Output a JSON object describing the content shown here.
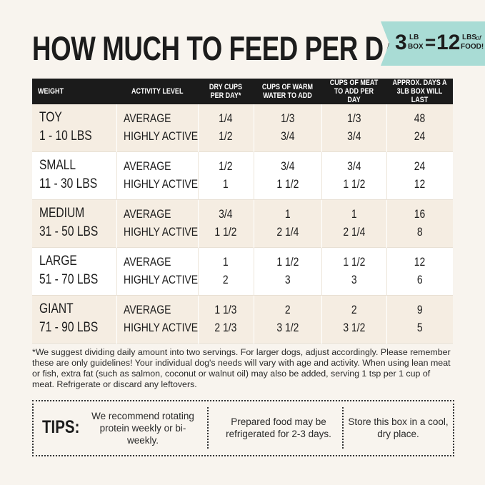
{
  "header": {
    "title": "HOW MUCH TO FEED PER DAY",
    "badge": {
      "box_qty": "3",
      "box_unit_top": "LB",
      "box_unit_bottom": "BOX",
      "equals": "=",
      "food_qty": "12",
      "food_unit_top": "LBS",
      "food_unit_of": "of",
      "food_unit_bottom": "FOOD!"
    }
  },
  "table": {
    "columns": [
      "WEIGHT",
      "ACTIVITY LEVEL",
      "DRY CUPS PER DAY*",
      "CUPS OF WARM WATER TO ADD",
      "CUPS OF MEAT TO ADD PER DAY",
      "APPROX. DAYS A 3LB BOX WILL LAST"
    ],
    "groups": [
      {
        "size": "TOY",
        "range": "1 - 10 LBS",
        "rows": [
          [
            "AVERAGE",
            "1/4",
            "1/3",
            "1/3",
            "48"
          ],
          [
            "HIGHLY ACTIVE",
            "1/2",
            "3/4",
            "3/4",
            "24"
          ]
        ]
      },
      {
        "size": "SMALL",
        "range": "11 - 30 LBS",
        "rows": [
          [
            "AVERAGE",
            "1/2",
            "3/4",
            "3/4",
            "24"
          ],
          [
            "HIGHLY ACTIVE",
            "1",
            "1 1/2",
            "1 1/2",
            "12"
          ]
        ]
      },
      {
        "size": "MEDIUM",
        "range": "31 - 50 LBS",
        "rows": [
          [
            "AVERAGE",
            "3/4",
            "1",
            "1",
            "16"
          ],
          [
            "HIGHLY ACTIVE",
            "1 1/2",
            "2 1/4",
            "2 1/4",
            "8"
          ]
        ]
      },
      {
        "size": "LARGE",
        "range": "51 - 70 LBS",
        "rows": [
          [
            "AVERAGE",
            "1",
            "1 1/2",
            "1 1/2",
            "12"
          ],
          [
            "HIGHLY ACTIVE",
            "2",
            "3",
            "3",
            "6"
          ]
        ]
      },
      {
        "size": "GIANT",
        "range": "71 - 90 LBS",
        "rows": [
          [
            "AVERAGE",
            "1 1/3",
            "2",
            "2",
            "9"
          ],
          [
            "HIGHLY ACTIVE",
            "2 1/3",
            "3 1/2",
            "3 1/2",
            "5"
          ]
        ]
      }
    ]
  },
  "footnote": "*We suggest dividing daily amount into two servings. For larger dogs, adjust accordingly. Please remember these are only guidelines! Your individual dog's needs will vary with age and activity. When using lean meat or fish, extra fat (such as salmon, coconut or walnut oil) may also be added, serving 1 tsp per 1 cup of meat. Refrigerate or discard any leftovers.",
  "tips": {
    "label": "TIPS:",
    "items": [
      "We recommend rotating protein weekly or bi-weekly.",
      "Prepared food may be refrigerated for 2-3 days.",
      "Store this box in a cool, dry place."
    ]
  }
}
